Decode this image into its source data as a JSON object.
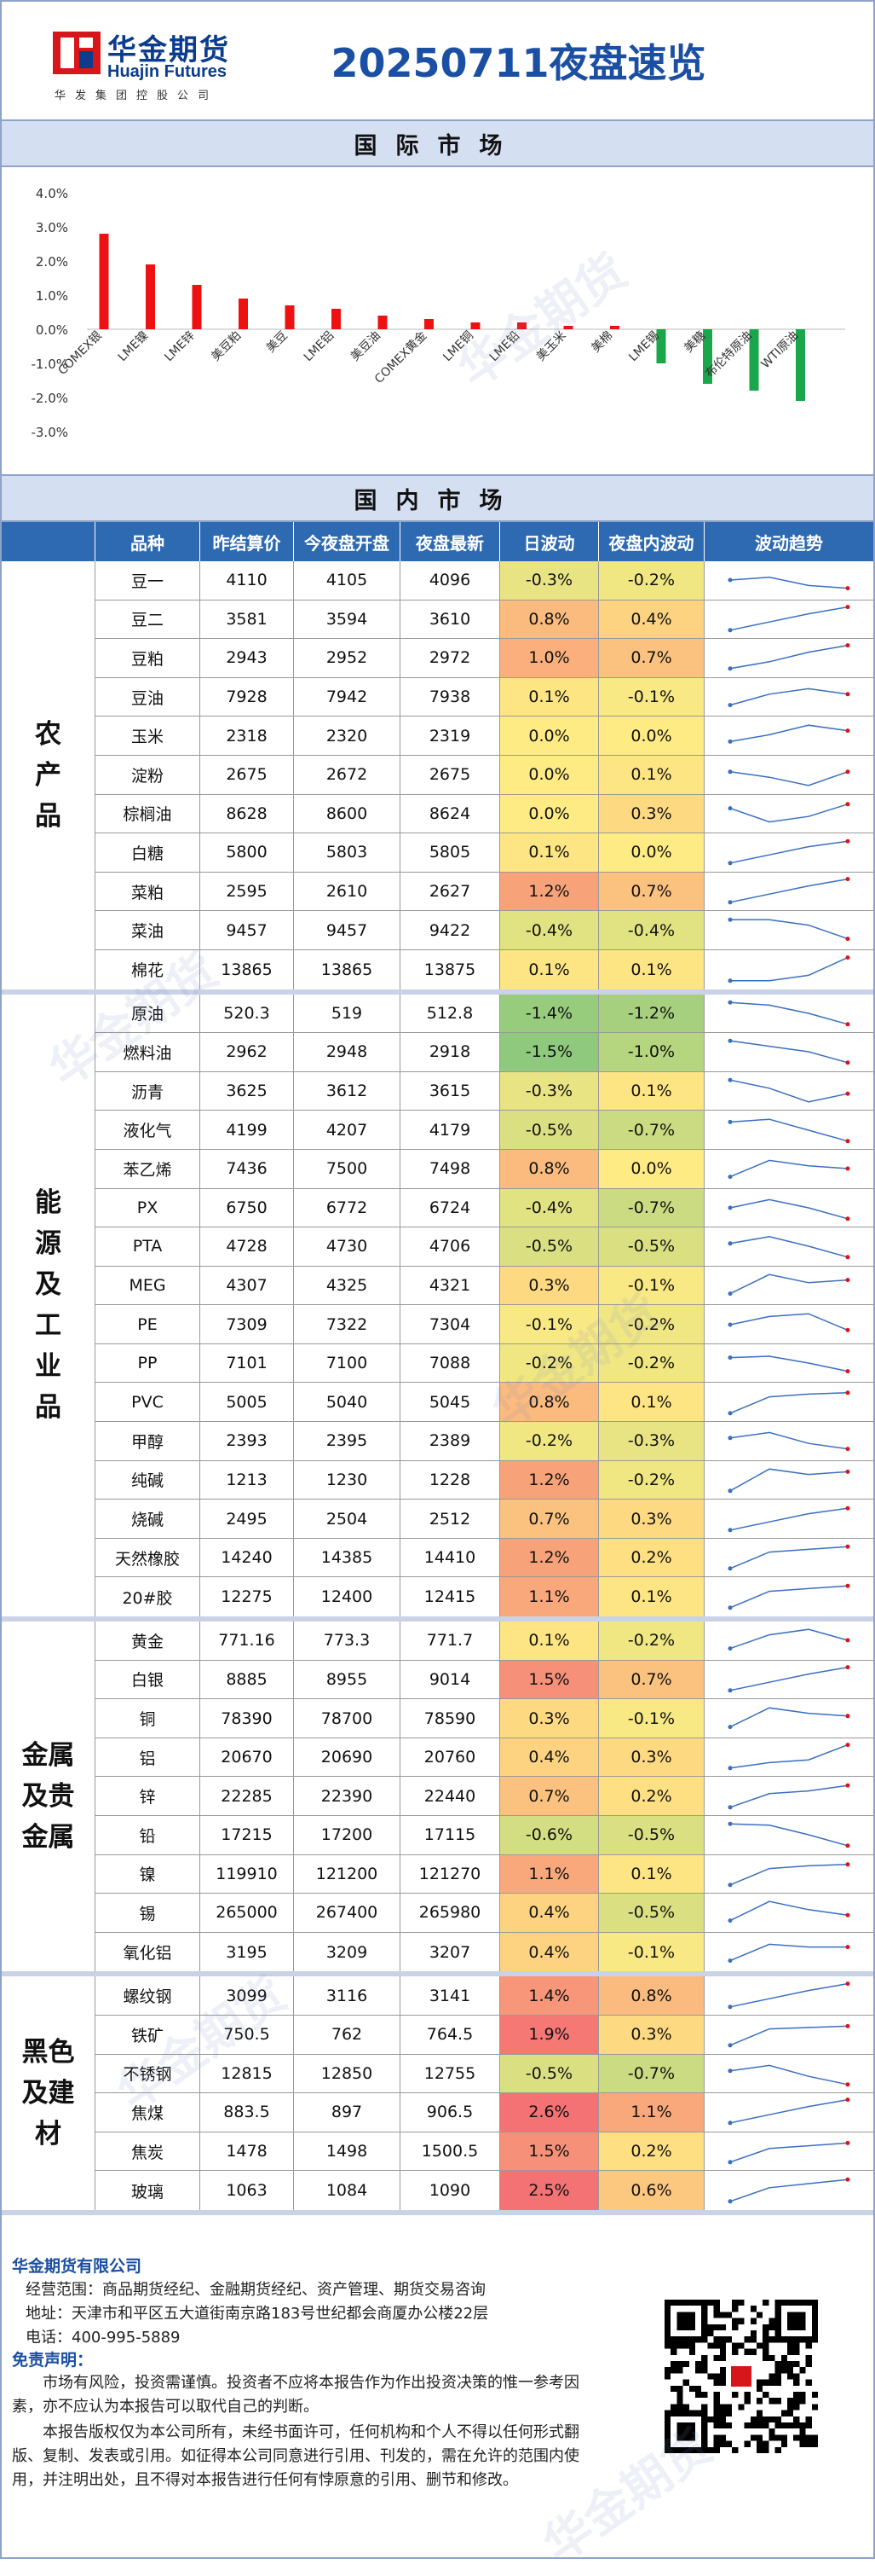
{
  "brand": {
    "name_cn": "华金期货",
    "name_en": "Huajin Futures",
    "group": "华发集团控股公司",
    "watermark": "华金期货"
  },
  "title": "20250711夜盘速览",
  "international": {
    "section_title": "国际市场",
    "chart_data": {
      "type": "bar",
      "categories": [
        "COMEX银",
        "LME镍",
        "LME锌",
        "美豆粕",
        "美豆",
        "LME铝",
        "美豆油",
        "COMEX黄金",
        "LME铜",
        "LME铅",
        "美玉米",
        "美棉",
        "LME锡",
        "美糖",
        "布伦特原油",
        "WTI原油"
      ],
      "values": [
        2.8,
        1.9,
        1.3,
        0.9,
        0.7,
        0.6,
        0.4,
        0.3,
        0.2,
        0.2,
        0.1,
        0.1,
        -1.0,
        -1.6,
        -1.8,
        -2.1
      ],
      "yticks": [
        "4.0%",
        "3.0%",
        "2.0%",
        "1.0%",
        "0.0%",
        "-1.0%",
        "-2.0%",
        "-3.0%"
      ],
      "ylim": [
        -3,
        4
      ],
      "colors": {
        "positive": "#ee1111",
        "negative": "#1aa64a"
      }
    }
  },
  "domestic": {
    "section_title": "国内市场",
    "headers": [
      "品种",
      "昨结算价",
      "今夜盘开盘",
      "夜盘最新",
      "日波动",
      "夜盘内波动",
      "波动趋势"
    ],
    "groups": [
      {
        "label": "农\n产\n品",
        "rows": [
          {
            "name": "豆一",
            "settle": "4110",
            "open": "4105",
            "last": "4096",
            "day": "-0.3%",
            "night": "-0.2%",
            "d": -0.3,
            "n": -0.2,
            "trend": [
              0.5,
              0.6,
              0.3,
              0.2
            ]
          },
          {
            "name": "豆二",
            "settle": "3581",
            "open": "3594",
            "last": "3610",
            "day": "0.8%",
            "night": "0.4%",
            "d": 0.8,
            "n": 0.4,
            "trend": [
              0.1,
              0.4,
              0.7,
              0.95
            ]
          },
          {
            "name": "豆粕",
            "settle": "2943",
            "open": "2952",
            "last": "2972",
            "day": "1.0%",
            "night": "0.7%",
            "d": 1.0,
            "n": 0.7,
            "trend": [
              0.1,
              0.35,
              0.7,
              0.95
            ]
          },
          {
            "name": "豆油",
            "settle": "7928",
            "open": "7942",
            "last": "7938",
            "day": "0.1%",
            "night": "-0.1%",
            "d": 0.1,
            "n": -0.1,
            "trend": [
              0.2,
              0.6,
              0.8,
              0.6
            ]
          },
          {
            "name": "玉米",
            "settle": "2318",
            "open": "2320",
            "last": "2319",
            "day": "0.0%",
            "night": "0.0%",
            "d": 0.0,
            "n": 0.0,
            "trend": [
              0.3,
              0.55,
              0.9,
              0.7
            ]
          },
          {
            "name": "淀粉",
            "settle": "2675",
            "open": "2672",
            "last": "2675",
            "day": "0.0%",
            "night": "0.1%",
            "d": 0.0,
            "n": 0.1,
            "trend": [
              0.6,
              0.4,
              0.1,
              0.6
            ]
          },
          {
            "name": "棕榈油",
            "settle": "8628",
            "open": "8600",
            "last": "8624",
            "day": "0.0%",
            "night": "0.3%",
            "d": 0.0,
            "n": 0.3,
            "trend": [
              0.7,
              0.2,
              0.4,
              0.85
            ]
          },
          {
            "name": "白糖",
            "settle": "5800",
            "open": "5803",
            "last": "5805",
            "day": "0.1%",
            "night": "0.0%",
            "d": 0.1,
            "n": 0.0,
            "trend": [
              0.1,
              0.4,
              0.7,
              0.9
            ]
          },
          {
            "name": "菜粕",
            "settle": "2595",
            "open": "2610",
            "last": "2627",
            "day": "1.2%",
            "night": "0.7%",
            "d": 1.2,
            "n": 0.7,
            "trend": [
              0.1,
              0.4,
              0.7,
              0.95
            ]
          },
          {
            "name": "菜油",
            "settle": "9457",
            "open": "9457",
            "last": "9422",
            "day": "-0.4%",
            "night": "-0.4%",
            "d": -0.4,
            "n": -0.4,
            "trend": [
              0.9,
              0.9,
              0.7,
              0.2
            ]
          },
          {
            "name": "棉花",
            "settle": "13865",
            "open": "13865",
            "last": "13875",
            "day": "0.1%",
            "night": "0.1%",
            "d": 0.1,
            "n": 0.1,
            "trend": [
              0.1,
              0.1,
              0.3,
              0.95
            ]
          }
        ]
      },
      {
        "label": "能\n源\n及\n工\n业\n品",
        "rows": [
          {
            "name": "原油",
            "settle": "520.3",
            "open": "519",
            "last": "512.8",
            "day": "-1.4%",
            "night": "-1.2%",
            "d": -1.4,
            "n": -1.2,
            "trend": [
              0.9,
              0.8,
              0.5,
              0.1
            ]
          },
          {
            "name": "燃料油",
            "settle": "2962",
            "open": "2948",
            "last": "2918",
            "day": "-1.5%",
            "night": "-1.0%",
            "d": -1.5,
            "n": -1.0,
            "trend": [
              0.9,
              0.7,
              0.5,
              0.1
            ]
          },
          {
            "name": "沥青",
            "settle": "3625",
            "open": "3612",
            "last": "3615",
            "day": "-0.3%",
            "night": "0.1%",
            "d": -0.3,
            "n": 0.1,
            "trend": [
              0.9,
              0.6,
              0.1,
              0.4
            ]
          },
          {
            "name": "液化气",
            "settle": "4199",
            "open": "4207",
            "last": "4179",
            "day": "-0.5%",
            "night": "-0.7%",
            "d": -0.5,
            "n": -0.7,
            "trend": [
              0.8,
              0.9,
              0.5,
              0.1
            ]
          },
          {
            "name": "苯乙烯",
            "settle": "7436",
            "open": "7500",
            "last": "7498",
            "day": "0.8%",
            "night": "0.0%",
            "d": 0.8,
            "n": 0.0,
            "trend": [
              0.2,
              0.8,
              0.6,
              0.5
            ]
          },
          {
            "name": "PX",
            "settle": "6750",
            "open": "6772",
            "last": "6724",
            "day": "-0.4%",
            "night": "-0.7%",
            "d": -0.4,
            "n": -0.7,
            "trend": [
              0.5,
              0.8,
              0.5,
              0.1
            ]
          },
          {
            "name": "PTA",
            "settle": "4728",
            "open": "4730",
            "last": "4706",
            "day": "-0.5%",
            "night": "-0.5%",
            "d": -0.5,
            "n": -0.5,
            "trend": [
              0.6,
              0.85,
              0.5,
              0.1
            ]
          },
          {
            "name": "MEG",
            "settle": "4307",
            "open": "4325",
            "last": "4321",
            "day": "0.3%",
            "night": "-0.1%",
            "d": 0.3,
            "n": -0.1,
            "trend": [
              0.2,
              0.9,
              0.6,
              0.7
            ]
          },
          {
            "name": "PE",
            "settle": "7309",
            "open": "7322",
            "last": "7304",
            "day": "-0.1%",
            "night": "-0.2%",
            "d": -0.1,
            "n": -0.2,
            "trend": [
              0.5,
              0.8,
              0.9,
              0.3
            ]
          },
          {
            "name": "PP",
            "settle": "7101",
            "open": "7100",
            "last": "7088",
            "day": "-0.2%",
            "night": "-0.2%",
            "d": -0.2,
            "n": -0.2,
            "trend": [
              0.7,
              0.75,
              0.5,
              0.2
            ]
          },
          {
            "name": "PVC",
            "settle": "5005",
            "open": "5040",
            "last": "5045",
            "day": "0.8%",
            "night": "0.1%",
            "d": 0.8,
            "n": 0.1,
            "trend": [
              0.1,
              0.7,
              0.8,
              0.85
            ]
          },
          {
            "name": "甲醇",
            "settle": "2393",
            "open": "2395",
            "last": "2389",
            "day": "-0.2%",
            "night": "-0.3%",
            "d": -0.2,
            "n": -0.3,
            "trend": [
              0.6,
              0.8,
              0.4,
              0.2
            ]
          },
          {
            "name": "纯碱",
            "settle": "1213",
            "open": "1230",
            "last": "1228",
            "day": "1.2%",
            "night": "-0.2%",
            "d": 1.2,
            "n": -0.2,
            "trend": [
              0.1,
              0.9,
              0.7,
              0.8
            ]
          },
          {
            "name": "烧碱",
            "settle": "2495",
            "open": "2504",
            "last": "2512",
            "day": "0.7%",
            "night": "0.3%",
            "d": 0.7,
            "n": 0.3,
            "trend": [
              0.1,
              0.4,
              0.7,
              0.9
            ]
          },
          {
            "name": "天然橡胶",
            "settle": "14240",
            "open": "14385",
            "last": "14410",
            "day": "1.2%",
            "night": "0.2%",
            "d": 1.2,
            "n": 0.2,
            "trend": [
              0.1,
              0.7,
              0.8,
              0.9
            ]
          },
          {
            "name": "20#胶",
            "settle": "12275",
            "open": "12400",
            "last": "12415",
            "day": "1.1%",
            "night": "0.1%",
            "d": 1.1,
            "n": 0.1,
            "trend": [
              0.1,
              0.7,
              0.8,
              0.9
            ]
          }
        ]
      },
      {
        "label": "金属\n及贵\n金属",
        "rows": [
          {
            "name": "黄金",
            "settle": "771.16",
            "open": "773.3",
            "last": "771.7",
            "day": "0.1%",
            "night": "-0.2%",
            "d": 0.1,
            "n": -0.2,
            "trend": [
              0.2,
              0.7,
              0.9,
              0.5
            ]
          },
          {
            "name": "白银",
            "settle": "8885",
            "open": "8955",
            "last": "9014",
            "day": "1.5%",
            "night": "0.7%",
            "d": 1.5,
            "n": 0.7,
            "trend": [
              0.1,
              0.4,
              0.7,
              0.95
            ]
          },
          {
            "name": "铜",
            "settle": "78390",
            "open": "78700",
            "last": "78590",
            "day": "0.3%",
            "night": "-0.1%",
            "d": 0.3,
            "n": -0.1,
            "trend": [
              0.2,
              0.9,
              0.7,
              0.6
            ]
          },
          {
            "name": "铝",
            "settle": "20670",
            "open": "20690",
            "last": "20760",
            "day": "0.4%",
            "night": "0.3%",
            "d": 0.4,
            "n": 0.3,
            "trend": [
              0.1,
              0.3,
              0.4,
              0.95
            ]
          },
          {
            "name": "锌",
            "settle": "22285",
            "open": "22390",
            "last": "22440",
            "day": "0.7%",
            "night": "0.2%",
            "d": 0.7,
            "n": 0.2,
            "trend": [
              0.1,
              0.6,
              0.7,
              0.9
            ]
          },
          {
            "name": "铅",
            "settle": "17215",
            "open": "17200",
            "last": "17115",
            "day": "-0.6%",
            "night": "-0.5%",
            "d": -0.6,
            "n": -0.5,
            "trend": [
              0.9,
              0.85,
              0.5,
              0.1
            ]
          },
          {
            "name": "镍",
            "settle": "119910",
            "open": "121200",
            "last": "121270",
            "day": "1.1%",
            "night": "0.1%",
            "d": 1.1,
            "n": 0.1,
            "trend": [
              0.1,
              0.7,
              0.8,
              0.85
            ]
          },
          {
            "name": "锡",
            "settle": "265000",
            "open": "267400",
            "last": "265980",
            "day": "0.4%",
            "night": "-0.5%",
            "d": 0.4,
            "n": -0.5,
            "trend": [
              0.2,
              0.9,
              0.6,
              0.4
            ]
          },
          {
            "name": "氧化铝",
            "settle": "3195",
            "open": "3209",
            "last": "3207",
            "day": "0.4%",
            "night": "-0.1%",
            "d": 0.4,
            "n": -0.1,
            "trend": [
              0.2,
              0.8,
              0.7,
              0.7
            ]
          }
        ]
      },
      {
        "label": "黑色\n及建\n材",
        "rows": [
          {
            "name": "螺纹钢",
            "settle": "3099",
            "open": "3116",
            "last": "3141",
            "day": "1.4%",
            "night": "0.8%",
            "d": 1.4,
            "n": 0.8,
            "trend": [
              0.1,
              0.4,
              0.7,
              0.95
            ]
          },
          {
            "name": "铁矿",
            "settle": "750.5",
            "open": "762",
            "last": "764.5",
            "day": "1.9%",
            "night": "0.3%",
            "d": 1.9,
            "n": 0.3,
            "trend": [
              0.1,
              0.7,
              0.75,
              0.8
            ]
          },
          {
            "name": "不锈钢",
            "settle": "12815",
            "open": "12850",
            "last": "12755",
            "day": "-0.5%",
            "night": "-0.7%",
            "d": -0.5,
            "n": -0.7,
            "trend": [
              0.6,
              0.8,
              0.4,
              0.1
            ]
          },
          {
            "name": "焦煤",
            "settle": "883.5",
            "open": "897",
            "last": "906.5",
            "day": "2.6%",
            "night": "1.1%",
            "d": 2.6,
            "n": 1.1,
            "trend": [
              0.1,
              0.4,
              0.7,
              0.95
            ]
          },
          {
            "name": "焦炭",
            "settle": "1478",
            "open": "1498",
            "last": "1500.5",
            "day": "1.5%",
            "night": "0.2%",
            "d": 1.5,
            "n": 0.2,
            "trend": [
              0.1,
              0.6,
              0.7,
              0.8
            ]
          },
          {
            "name": "玻璃",
            "settle": "1063",
            "open": "1084",
            "last": "1090",
            "day": "2.5%",
            "night": "0.6%",
            "d": 2.5,
            "n": 0.6,
            "trend": [
              0.1,
              0.6,
              0.75,
              0.9
            ]
          }
        ]
      }
    ]
  },
  "footer": {
    "company": "华金期货有限公司",
    "scope": "经营范围：商品期货经纪、金融期货经纪、资产管理、期货交易咨询",
    "address": "地址：天津市和平区五大道街南京路183号世纪都会商厦办公楼22层",
    "phone": "电话：400-995-5889",
    "disclaimer_title": "免责声明：",
    "para1": "市场有风险，投资需谨慎。投资者不应将本报告作为作出投资决策的惟一参考因素，亦不应认为本报告可以取代自己的判断。",
    "para2": "本报告版权仅为本公司所有，未经书面许可，任何机构和个人不得以任何形式翻版、复制、发表或引用。如征得本公司同意进行引用、刊发的，需在允许的范围内使用，并注明出处，且不得对本报告进行任何有悖原意的引用、删节和修改。"
  }
}
